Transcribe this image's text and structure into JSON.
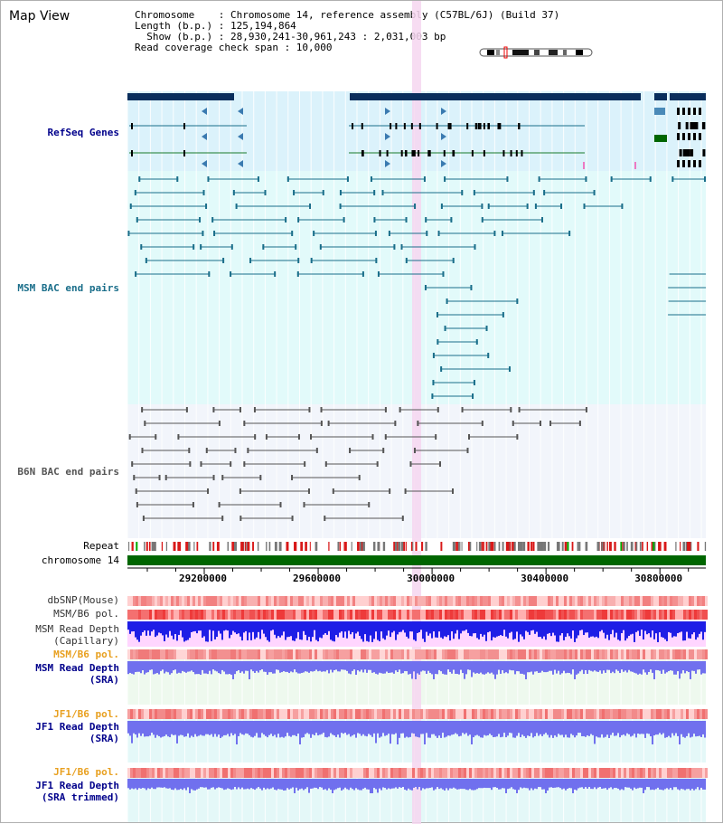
{
  "title": "Map View",
  "header": {
    "line1": "Chromosome    : Chromosome 14, reference assembly (C57BL/6J) (Build 37)",
    "line2": "Length (b.p.) : 125,194,864",
    "line3": "  Show (b.p.) : 28,930,241-30,961,243 : 2,031,003 bp",
    "line4": "Read coverage check span : 10,000"
  },
  "tracks": {
    "refseq": "RefSeq Genes",
    "msm_bac": "MSM BAC end pairs",
    "b6n_bac": "B6N BAC end pairs",
    "repeat": "Repeat",
    "chromosome": "chromosome 14",
    "dbsnp": "dbSNP(Mouse)",
    "msm_b6_pol": "MSM/B6 pol.",
    "msm_depth_cap_1": "MSM Read Depth",
    "msm_depth_cap_2": "(Capillary)",
    "msm_b6_pol_2": "MSM/B6 pol.",
    "msm_depth_sra_1": "MSM Read Depth",
    "msm_depth_sra_2": "(SRA)",
    "jf1_b6_pol": "JF1/B6 pol.",
    "jf1_depth_1": "JF1 Read Depth",
    "jf1_depth_2": "(SRA)",
    "jf1_b6_pol_2": "JF1/B6 pol.",
    "jf1_trim_1": "JF1 Read Depth",
    "jf1_trim_2": "(SRA trimmed)"
  },
  "axis": {
    "ticks": [
      "29200000",
      "29600000",
      "30000000",
      "30400000",
      "30800000"
    ],
    "range": [
      28930241,
      30961243
    ]
  },
  "colors": {
    "refseq_bg": "#dbf2fb",
    "msm_bg": "#e2fafa",
    "b6n_bg": "#f2f5fb",
    "highlight": "#f6d6f0",
    "gene_dark": "#0a2e5c",
    "msm_line": "#1a6e8a",
    "b6n_line": "#555555",
    "chrom_green": "#006600",
    "depth_blue": "#1e1ee6",
    "depth_sra": "#7070ee"
  }
}
